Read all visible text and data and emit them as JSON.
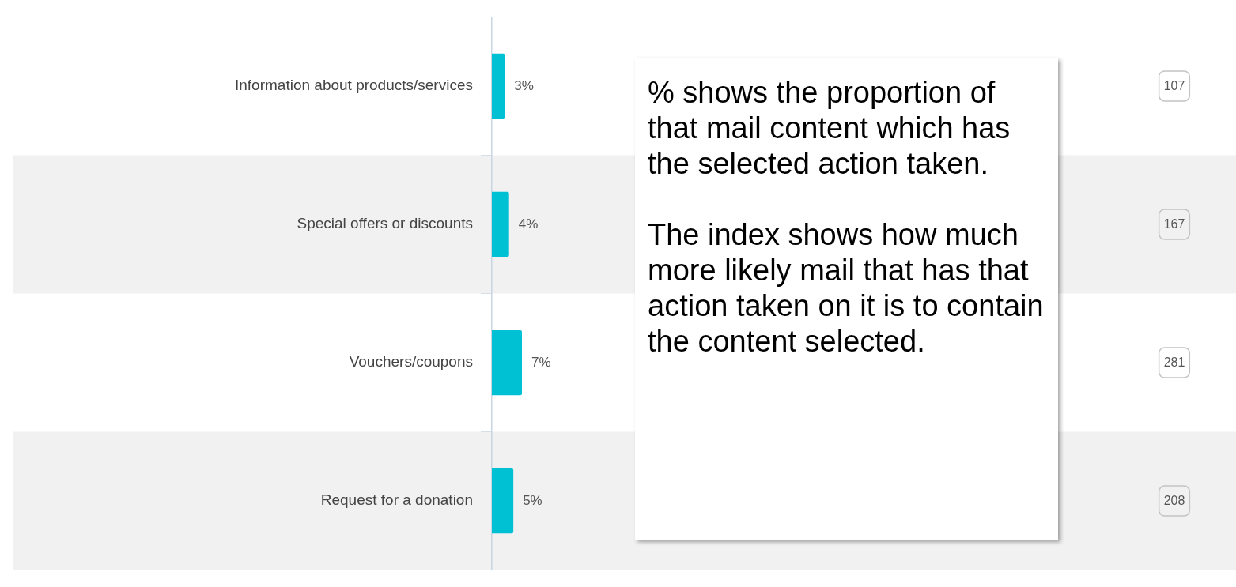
{
  "chart_data": {
    "type": "bar",
    "orientation": "horizontal",
    "categories": [
      "Information about products/services",
      "Special offers or discounts",
      "Vouchers/coupons",
      "Request for a donation"
    ],
    "values": [
      3,
      4,
      7,
      5
    ],
    "color": "#00c0d4",
    "value_labels": [
      "3%",
      "4%",
      "7%",
      "5%"
    ],
    "tick_labels": "y",
    "grid": false,
    "legend": false,
    "bands": [
      {
        "axis": "y",
        "from": "Special offers or discounts",
        "to": "Special offers or discounts",
        "color": "#f1f1f1"
      },
      {
        "axis": "y",
        "from": "Request for a donation",
        "to": "Request for a donation",
        "color": "#f1f1f1"
      }
    ],
    "annotations": [
      "107",
      "167",
      "281",
      "208",
      "% shows the proportion of that mail content which has the selected action taken.",
      "The index shows how much more likely mail that has that action taken on it is to contain the content selected."
    ]
  }
}
